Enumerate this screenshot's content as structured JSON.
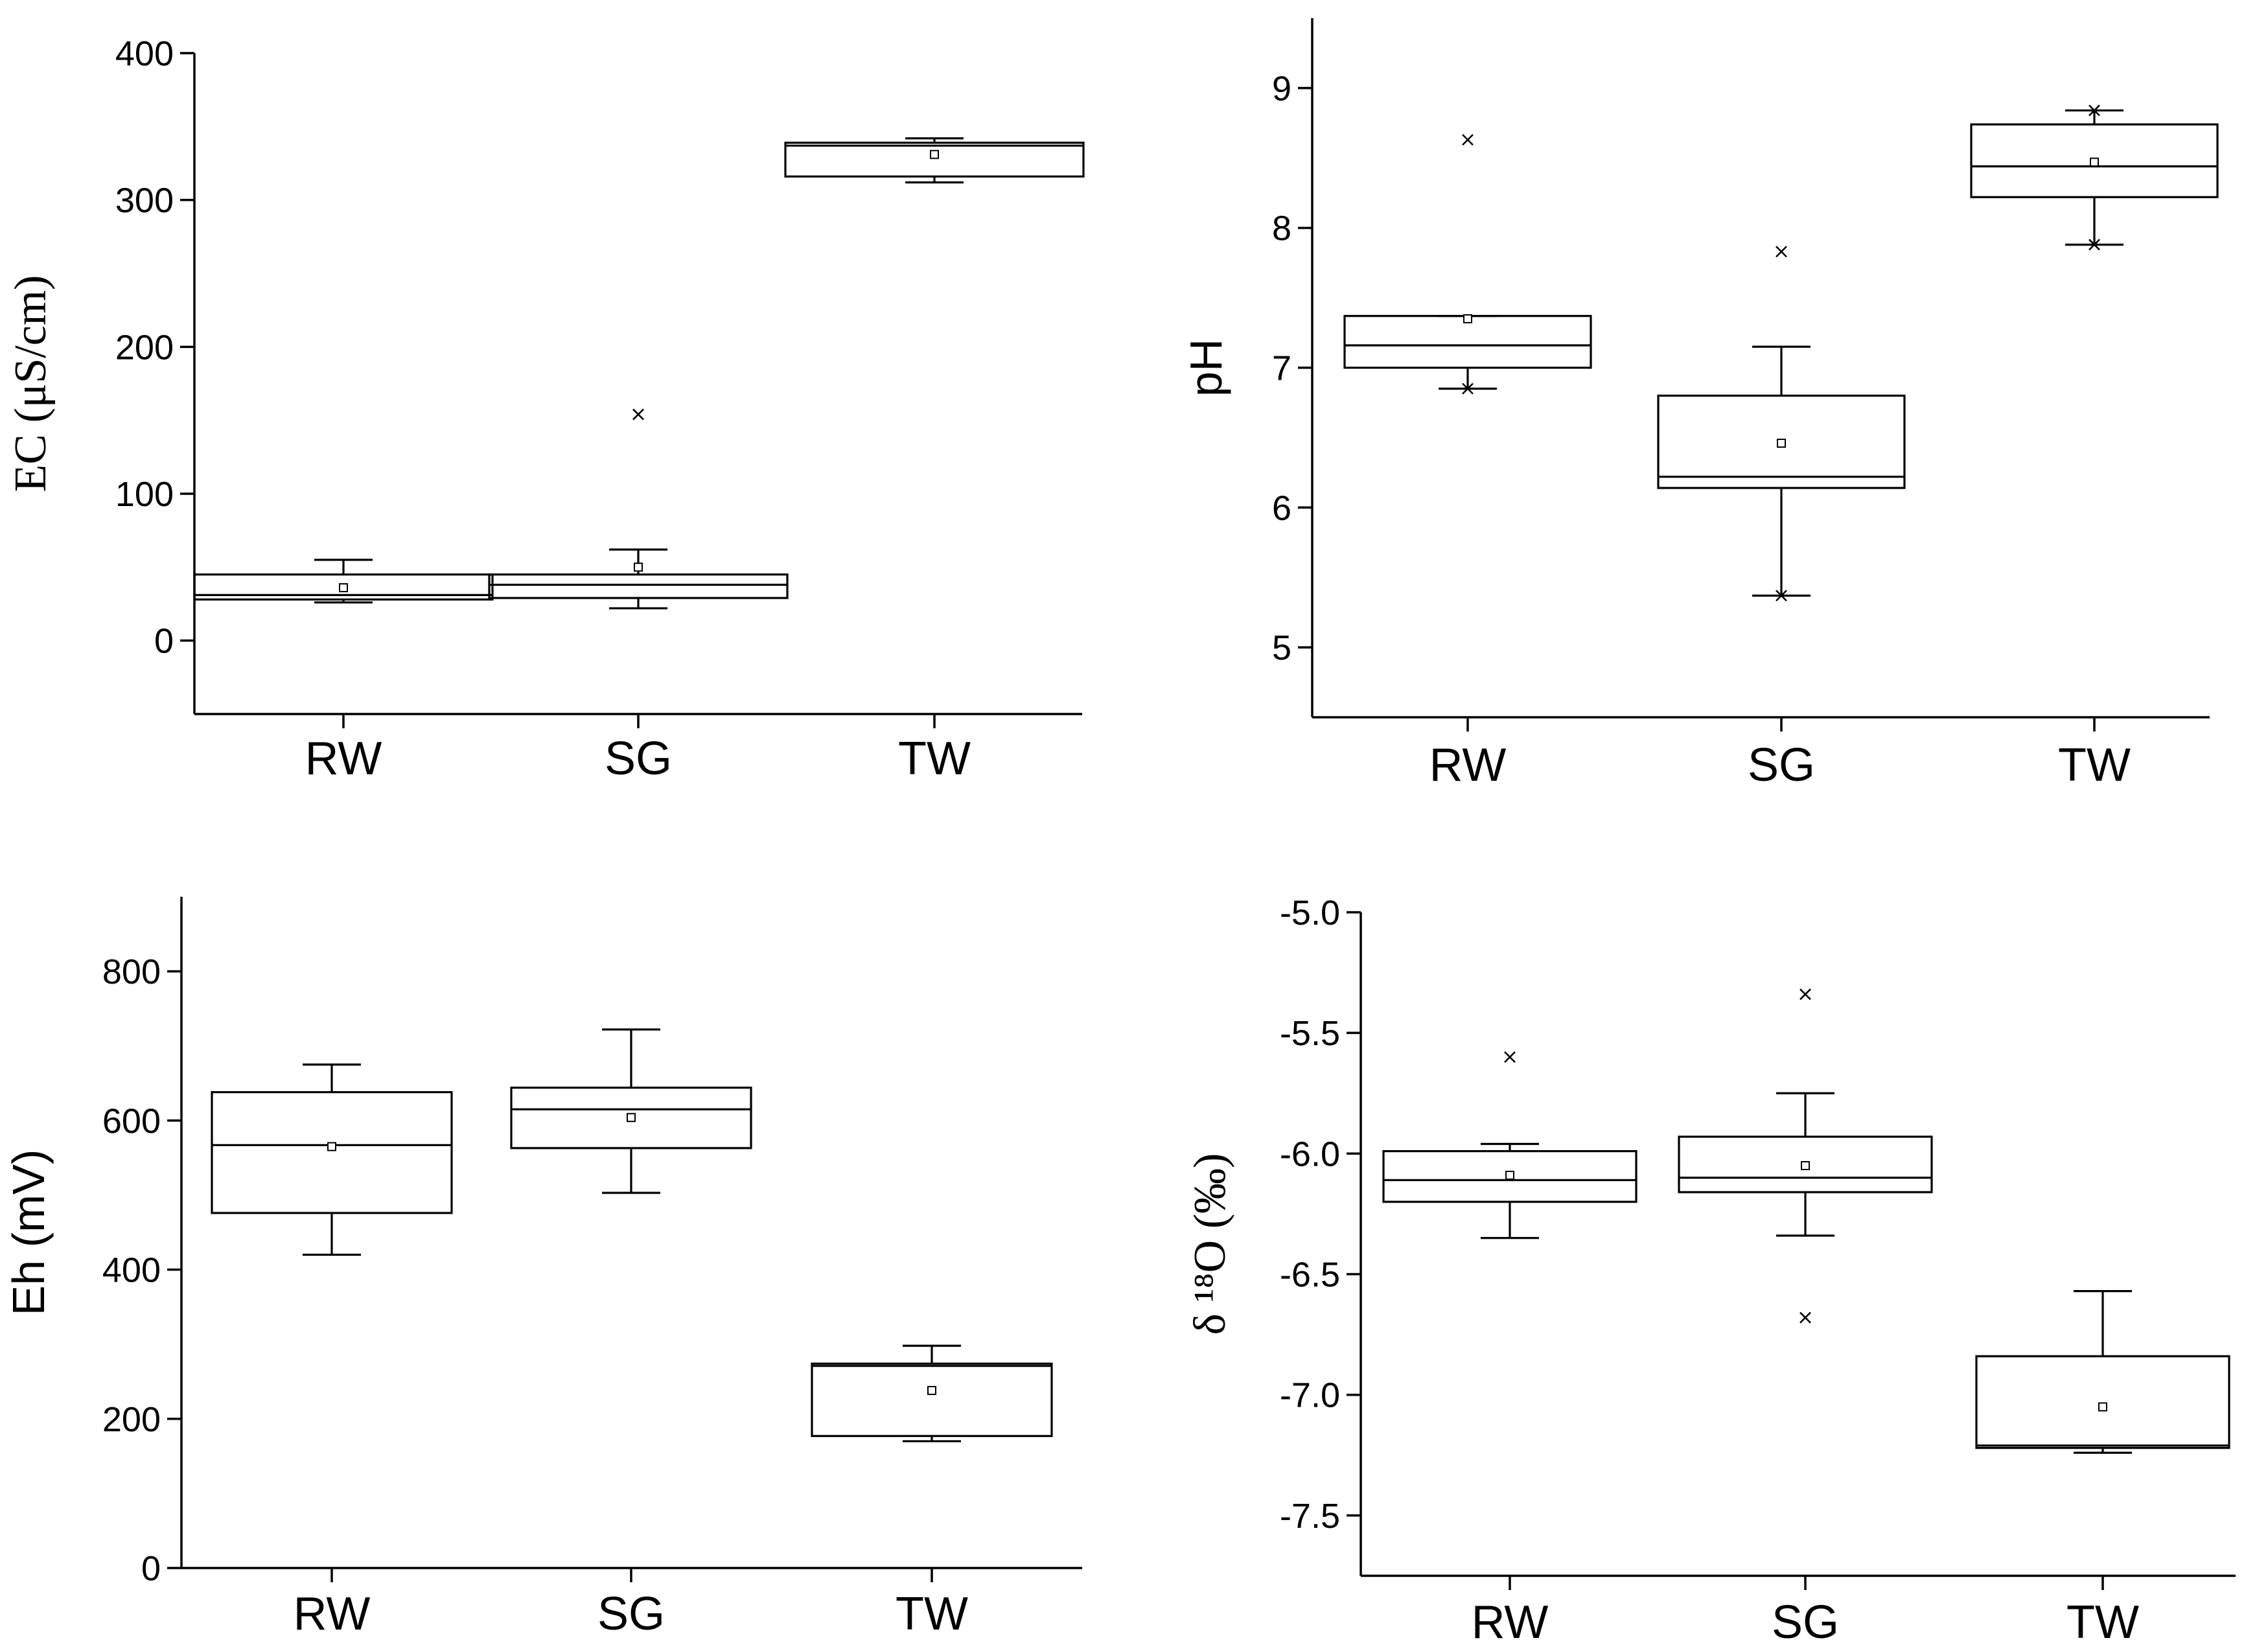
{
  "chart_data": [
    {
      "type": "box",
      "ylabel": "EC (μS/cm)",
      "ylim": [
        -50,
        400
      ],
      "yticks": [
        0,
        100,
        200,
        300,
        400
      ],
      "categories": [
        "RW",
        "SG",
        "TW"
      ],
      "boxes": [
        {
          "category": "RW",
          "whisker_low": 26,
          "q1": 28,
          "median": 31,
          "q3": 45,
          "whisker_high": 55,
          "mean": 36,
          "extremes": []
        },
        {
          "category": "SG",
          "whisker_low": 22,
          "q1": 29,
          "median": 38,
          "q3": 45,
          "whisker_high": 62,
          "mean": 50,
          "extremes": [
            154
          ]
        },
        {
          "category": "TW",
          "whisker_low": 312,
          "q1": 316,
          "median": 337,
          "q3": 339,
          "whisker_high": 342,
          "mean": 331,
          "extremes": []
        }
      ]
    },
    {
      "type": "box",
      "ylabel": "pH",
      "ylim": [
        4.5,
        9.5
      ],
      "yticks": [
        5,
        6,
        7,
        8,
        9
      ],
      "categories": [
        "RW",
        "SG",
        "TW"
      ],
      "boxes": [
        {
          "category": "RW",
          "whisker_low": 6.85,
          "q1": 7.0,
          "median": 7.16,
          "q3": 7.37,
          "whisker_high": 7.37,
          "mean": 7.35,
          "extremes": [
            8.63,
            6.85
          ]
        },
        {
          "category": "SG",
          "whisker_low": 5.37,
          "q1": 6.14,
          "median": 6.22,
          "q3": 6.8,
          "whisker_high": 7.15,
          "mean": 6.46,
          "extremes": [
            7.83,
            5.37
          ]
        },
        {
          "category": "TW",
          "whisker_low": 7.88,
          "q1": 8.22,
          "median": 8.44,
          "q3": 8.74,
          "whisker_high": 8.84,
          "mean": 8.47,
          "extremes": [
            8.84,
            7.88
          ]
        }
      ]
    },
    {
      "type": "box",
      "ylabel": "Eh (mV)",
      "ylim": [
        0,
        900
      ],
      "yticks": [
        0,
        200,
        400,
        600,
        800
      ],
      "categories": [
        "RW",
        "SG",
        "TW"
      ],
      "boxes": [
        {
          "category": "RW",
          "whisker_low": 420,
          "q1": 476,
          "median": 567,
          "q3": 638,
          "whisker_high": 675,
          "mean": 565,
          "extremes": []
        },
        {
          "category": "SG",
          "whisker_low": 503,
          "q1": 563,
          "median": 615,
          "q3": 644,
          "whisker_high": 722,
          "mean": 604,
          "extremes": []
        },
        {
          "category": "TW",
          "whisker_low": 170,
          "q1": 177,
          "median": 271,
          "q3": 274,
          "whisker_high": 298,
          "mean": 238,
          "extremes": []
        }
      ]
    },
    {
      "type": "box",
      "ylabel": "δ ¹⁸O (‰)",
      "ylim": [
        -7.75,
        -5.0
      ],
      "yticks": [
        -5.0,
        -5.5,
        -6.0,
        -6.5,
        -7.0,
        -7.5
      ],
      "ytick_labels": [
        "-5.0",
        "-5.5",
        "-6.0",
        "-6.5",
        "-7.0",
        "-7.5"
      ],
      "categories": [
        "RW",
        "SG",
        "TW"
      ],
      "boxes": [
        {
          "category": "RW",
          "whisker_low": -6.35,
          "q1": -6.2,
          "median": -6.11,
          "q3": -5.99,
          "whisker_high": -5.96,
          "mean": -6.09,
          "extremes": [
            -5.6
          ]
        },
        {
          "category": "SG",
          "whisker_low": -6.34,
          "q1": -6.16,
          "median": -6.1,
          "q3": -5.93,
          "whisker_high": -5.75,
          "mean": -6.05,
          "extremes": [
            -5.34,
            -6.68
          ]
        },
        {
          "category": "TW",
          "whisker_low": -7.24,
          "q1": -7.22,
          "median": -7.21,
          "q3": -6.84,
          "whisker_high": -6.57,
          "mean": -7.05,
          "extremes": []
        }
      ]
    }
  ]
}
